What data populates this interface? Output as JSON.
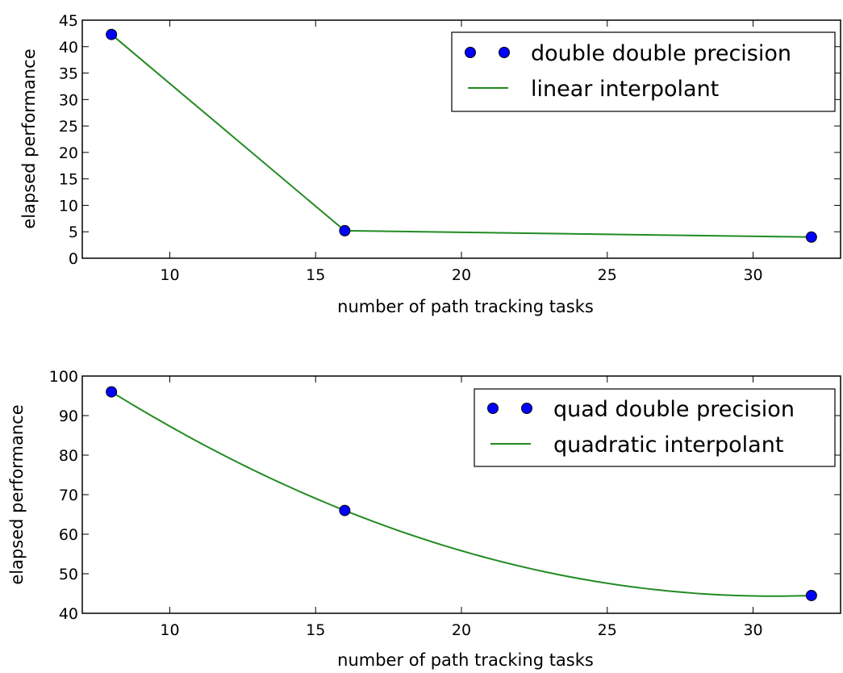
{
  "chart_data": [
    {
      "type": "line",
      "xlabel": "number of path tracking tasks",
      "ylabel": "elapsed performance",
      "xlim": [
        7,
        33
      ],
      "ylim": [
        0,
        45
      ],
      "xticks": [
        10,
        15,
        20,
        25,
        30
      ],
      "yticks": [
        0,
        5,
        10,
        15,
        20,
        25,
        30,
        35,
        40,
        45
      ],
      "legend_position": "top-right",
      "series": [
        {
          "name": "double double precision",
          "style": "markers",
          "color": "#0000ff",
          "x": [
            8,
            16,
            32
          ],
          "y": [
            42.3,
            5.2,
            4.0
          ]
        },
        {
          "name": "linear interpolant",
          "style": "line",
          "interp": "linear",
          "color": "#228b22",
          "x": [
            8,
            16,
            32
          ],
          "y": [
            42.3,
            5.2,
            4.0
          ]
        }
      ]
    },
    {
      "type": "line",
      "xlabel": "number of path tracking tasks",
      "ylabel": "elapsed performance",
      "xlim": [
        7,
        33
      ],
      "ylim": [
        40,
        100
      ],
      "xticks": [
        10,
        15,
        20,
        25,
        30
      ],
      "yticks": [
        40,
        50,
        60,
        70,
        80,
        90,
        100
      ],
      "legend_position": "top-right",
      "series": [
        {
          "name": "quad double precision",
          "style": "markers",
          "color": "#0000ff",
          "x": [
            8,
            16,
            32
          ],
          "y": [
            96.0,
            66.0,
            44.5
          ]
        },
        {
          "name": "quadratic interpolant",
          "style": "line",
          "interp": "quadratic",
          "color": "#228b22",
          "x": [
            8,
            16,
            32
          ],
          "y": [
            96.0,
            66.0,
            44.5
          ]
        }
      ]
    }
  ]
}
